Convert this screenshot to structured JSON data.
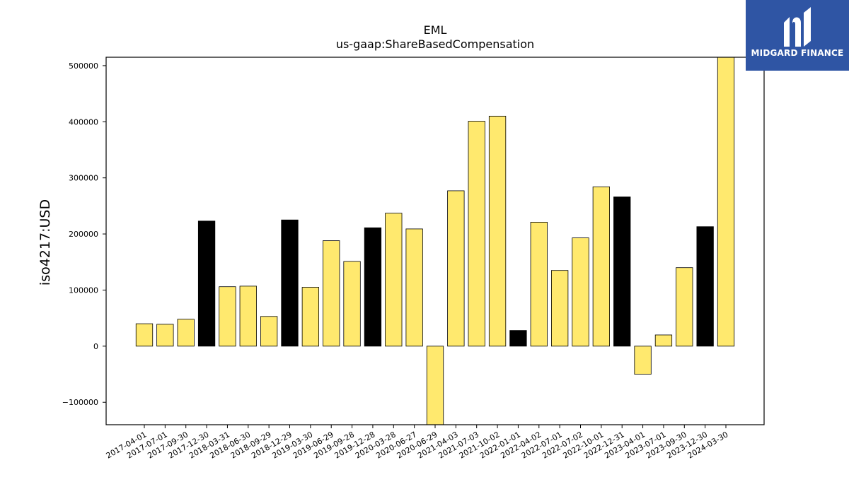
{
  "brand": {
    "name": "MIDGARD FINANCE"
  },
  "chart_data": {
    "type": "bar",
    "title": "EML",
    "subtitle": "us-gaap:ShareBasedCompensation",
    "xlabel": "",
    "ylabel": "iso4217:USD",
    "ylim": [
      -140000,
      515000
    ],
    "yticks": [
      -100000,
      0,
      100000,
      200000,
      300000,
      400000,
      500000
    ],
    "grid": false,
    "colors": {
      "quarter": "#ffe96e",
      "annual": "#000000",
      "edge": "#000000"
    },
    "categories": [
      "2017-04-01",
      "2017-07-01",
      "2017-09-30",
      "2017-12-30",
      "2018-03-31",
      "2018-06-30",
      "2018-09-29",
      "2018-12-29",
      "2019-03-30",
      "2019-06-29",
      "2019-09-28",
      "2019-12-28",
      "2020-03-28",
      "2020-06-27",
      "2020-06-29",
      "2021-04-03",
      "2021-07-03",
      "2021-10-02",
      "2022-01-01",
      "2022-04-02",
      "2022-07-01",
      "2022-07-02",
      "2022-10-01",
      "2022-12-31",
      "2023-04-01",
      "2023-07-01",
      "2023-09-30",
      "2023-12-30",
      "2024-03-30"
    ],
    "values": [
      40000,
      39000,
      48000,
      223000,
      106000,
      107000,
      53000,
      225000,
      105000,
      188000,
      151000,
      211000,
      237000,
      209000,
      -140000,
      277000,
      401000,
      410000,
      28000,
      221000,
      135000,
      193000,
      284000,
      266000,
      -50000,
      20000,
      140000,
      213000,
      515000
    ],
    "highlight": [
      false,
      false,
      false,
      true,
      false,
      false,
      false,
      true,
      false,
      false,
      false,
      true,
      false,
      false,
      false,
      false,
      false,
      false,
      true,
      false,
      false,
      false,
      false,
      true,
      false,
      false,
      false,
      true,
      false
    ]
  }
}
